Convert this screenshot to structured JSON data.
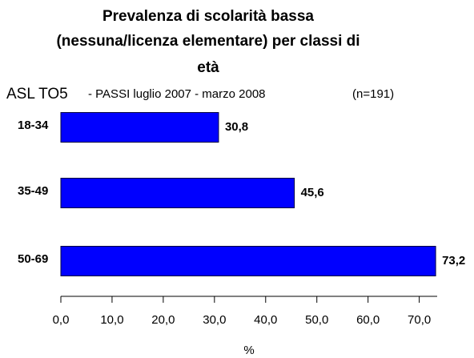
{
  "chart_data": {
    "type": "bar",
    "orientation": "horizontal",
    "title": [
      "Prevalenza di scolarità bassa",
      "(nessuna/licenza elementare) per classi di",
      "età"
    ],
    "subtitle": [
      "ASL TO5",
      "- PASSI luglio 2007 - marzo 2008",
      "(n=191)"
    ],
    "categories": [
      "18-34",
      "35-49",
      "50-69"
    ],
    "values": [
      30.8,
      45.6,
      73.2
    ],
    "value_labels": [
      "30,8",
      "45,6",
      "73,2"
    ],
    "color": "#0000ff",
    "xlabel": "%",
    "xlim": [
      0,
      73.5
    ],
    "xticks": [
      {
        "value": 0,
        "label": "0,0"
      },
      {
        "value": 10,
        "label": "10,0"
      },
      {
        "value": 20,
        "label": "20,0"
      },
      {
        "value": 30,
        "label": "30,0"
      },
      {
        "value": 40,
        "label": "40,0"
      },
      {
        "value": 50,
        "label": "50,0"
      },
      {
        "value": 60,
        "label": "60,0"
      },
      {
        "value": 70,
        "label": "70,0"
      }
    ]
  }
}
